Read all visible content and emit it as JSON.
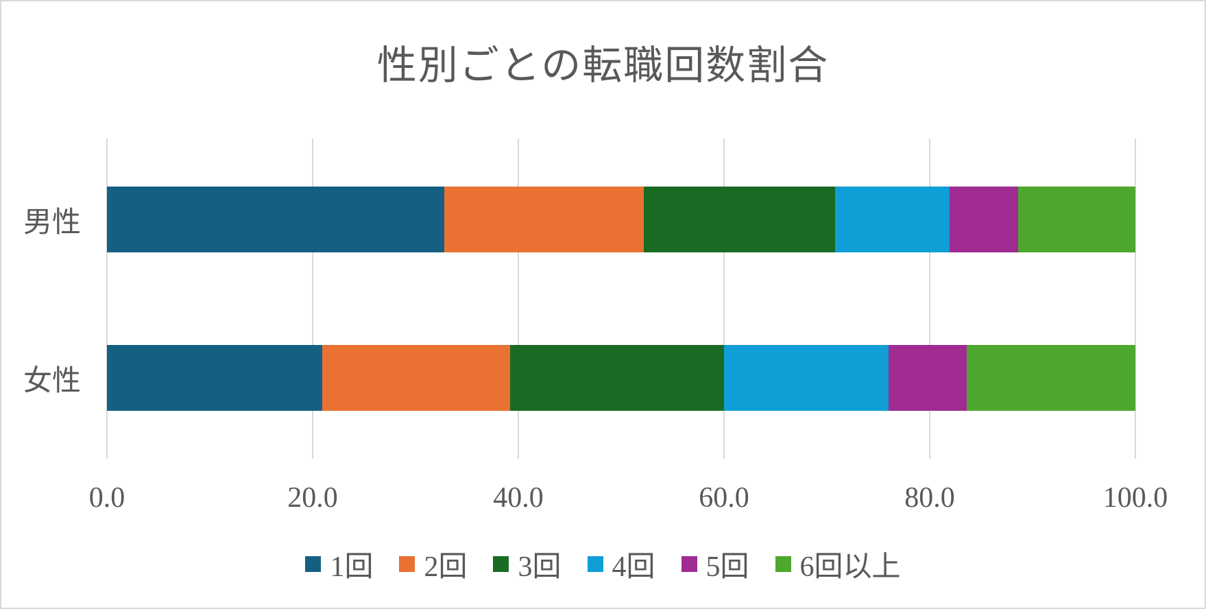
{
  "chart_data": {
    "type": "bar",
    "orientation": "horizontal",
    "stacked": true,
    "unit": "percent",
    "title": "性別ごとの転職回数割合",
    "categories": [
      "男性",
      "女性"
    ],
    "series": [
      {
        "name": "1回",
        "color": "#156082",
        "values": [
          32.8,
          20.9
        ]
      },
      {
        "name": "2回",
        "color": "#E97132",
        "values": [
          19.4,
          18.3
        ]
      },
      {
        "name": "3回",
        "color": "#196B24",
        "values": [
          18.6,
          20.8
        ]
      },
      {
        "name": "4回",
        "color": "#0F9ED5",
        "values": [
          11.1,
          16.0
        ]
      },
      {
        "name": "5回",
        "color": "#A02B93",
        "values": [
          6.7,
          7.6
        ]
      },
      {
        "name": "6回以上",
        "color": "#4EA72E",
        "values": [
          11.4,
          16.4
        ]
      }
    ],
    "x_axis": {
      "min": 0,
      "max": 100,
      "tick_labels": [
        "0.0",
        "20.0",
        "40.0",
        "60.0",
        "80.0",
        "100.0"
      ]
    },
    "grid": true,
    "legend_position": "bottom",
    "style": {
      "text_color": "#595959",
      "gridline_color": "#D9D9D9",
      "background": "#FFFFFF",
      "border_color": "#D9D9D9"
    }
  }
}
